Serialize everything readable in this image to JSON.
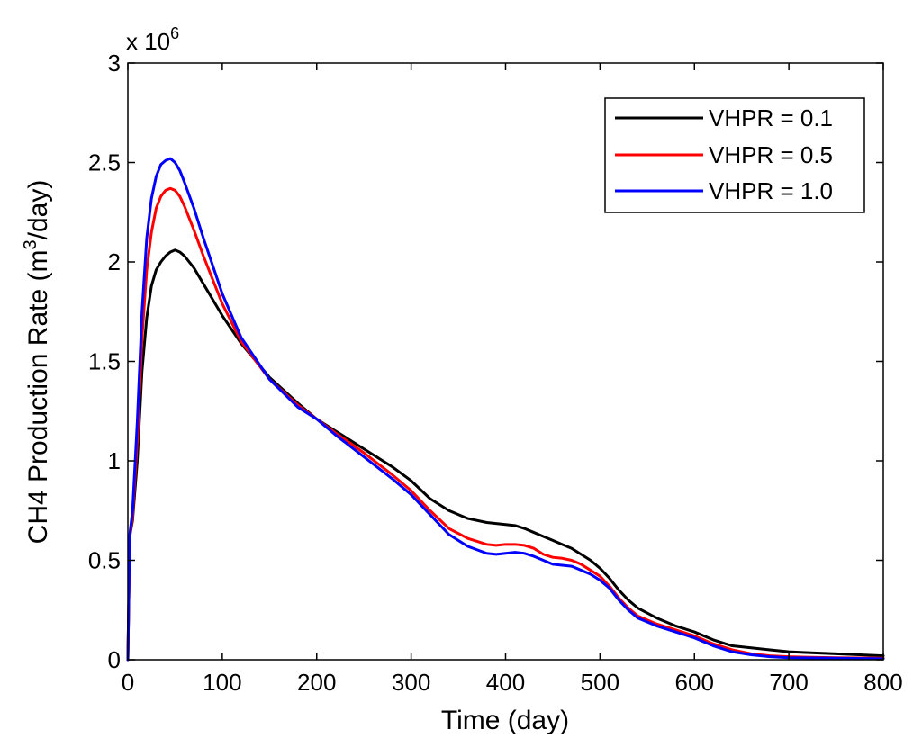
{
  "chart_data": {
    "type": "line",
    "title": "",
    "xlabel": "Time (day)",
    "ylabel": {
      "prefix": "CH4 Production Rate (m",
      "sup": "3",
      "suffix": "/day)"
    },
    "y_multiplier": {
      "base": "x 10",
      "exp": "6"
    },
    "xlim": [
      0,
      800
    ],
    "ylim": [
      0,
      3
    ],
    "xticks": [
      0,
      100,
      200,
      300,
      400,
      500,
      600,
      700,
      800
    ],
    "yticks": [
      0,
      0.5,
      1,
      1.5,
      2,
      2.5,
      3
    ],
    "ytick_labels": [
      "0",
      "0.5",
      "1",
      "1.5",
      "2",
      "2.5",
      "3"
    ],
    "grid": false,
    "legend_position": "top-right",
    "x": [
      0,
      2,
      5,
      10,
      15,
      20,
      25,
      30,
      35,
      40,
      45,
      50,
      55,
      60,
      70,
      80,
      100,
      120,
      150,
      180,
      200,
      220,
      250,
      280,
      300,
      320,
      340,
      360,
      380,
      390,
      400,
      410,
      420,
      430,
      440,
      450,
      460,
      470,
      480,
      490,
      500,
      510,
      520,
      530,
      540,
      560,
      580,
      600,
      620,
      640,
      660,
      680,
      700,
      750,
      800
    ],
    "series": [
      {
        "name": "VHPR = 0.1",
        "color": "#000000",
        "values": [
          0.0,
          0.62,
          0.7,
          1.0,
          1.45,
          1.72,
          1.88,
          1.96,
          2.0,
          2.03,
          2.05,
          2.06,
          2.05,
          2.03,
          1.97,
          1.89,
          1.73,
          1.59,
          1.42,
          1.29,
          1.21,
          1.15,
          1.06,
          0.97,
          0.9,
          0.81,
          0.75,
          0.71,
          0.69,
          0.685,
          0.68,
          0.675,
          0.66,
          0.64,
          0.62,
          0.6,
          0.58,
          0.56,
          0.53,
          0.5,
          0.46,
          0.41,
          0.35,
          0.3,
          0.26,
          0.21,
          0.17,
          0.14,
          0.1,
          0.07,
          0.06,
          0.05,
          0.04,
          0.03,
          0.02
        ]
      },
      {
        "name": "VHPR = 0.5",
        "color": "#ff0000",
        "values": [
          0.0,
          0.62,
          0.72,
          1.1,
          1.62,
          1.96,
          2.15,
          2.27,
          2.33,
          2.36,
          2.37,
          2.36,
          2.33,
          2.28,
          2.16,
          2.03,
          1.79,
          1.6,
          1.41,
          1.28,
          1.21,
          1.14,
          1.04,
          0.93,
          0.85,
          0.75,
          0.66,
          0.61,
          0.58,
          0.575,
          0.58,
          0.58,
          0.575,
          0.56,
          0.53,
          0.515,
          0.51,
          0.5,
          0.48,
          0.45,
          0.42,
          0.37,
          0.31,
          0.26,
          0.22,
          0.18,
          0.15,
          0.12,
          0.08,
          0.05,
          0.03,
          0.02,
          0.015,
          0.01,
          0.008
        ]
      },
      {
        "name": "VHPR = 1.0",
        "color": "#0000ff",
        "values": [
          0.0,
          0.63,
          0.75,
          1.2,
          1.75,
          2.12,
          2.32,
          2.43,
          2.49,
          2.51,
          2.52,
          2.5,
          2.46,
          2.4,
          2.27,
          2.12,
          1.84,
          1.62,
          1.41,
          1.27,
          1.21,
          1.13,
          1.02,
          0.91,
          0.83,
          0.73,
          0.63,
          0.57,
          0.535,
          0.53,
          0.535,
          0.54,
          0.535,
          0.52,
          0.5,
          0.48,
          0.475,
          0.47,
          0.45,
          0.43,
          0.4,
          0.36,
          0.3,
          0.25,
          0.21,
          0.17,
          0.14,
          0.11,
          0.07,
          0.04,
          0.025,
          0.015,
          0.01,
          0.008,
          0.005
        ]
      }
    ]
  }
}
